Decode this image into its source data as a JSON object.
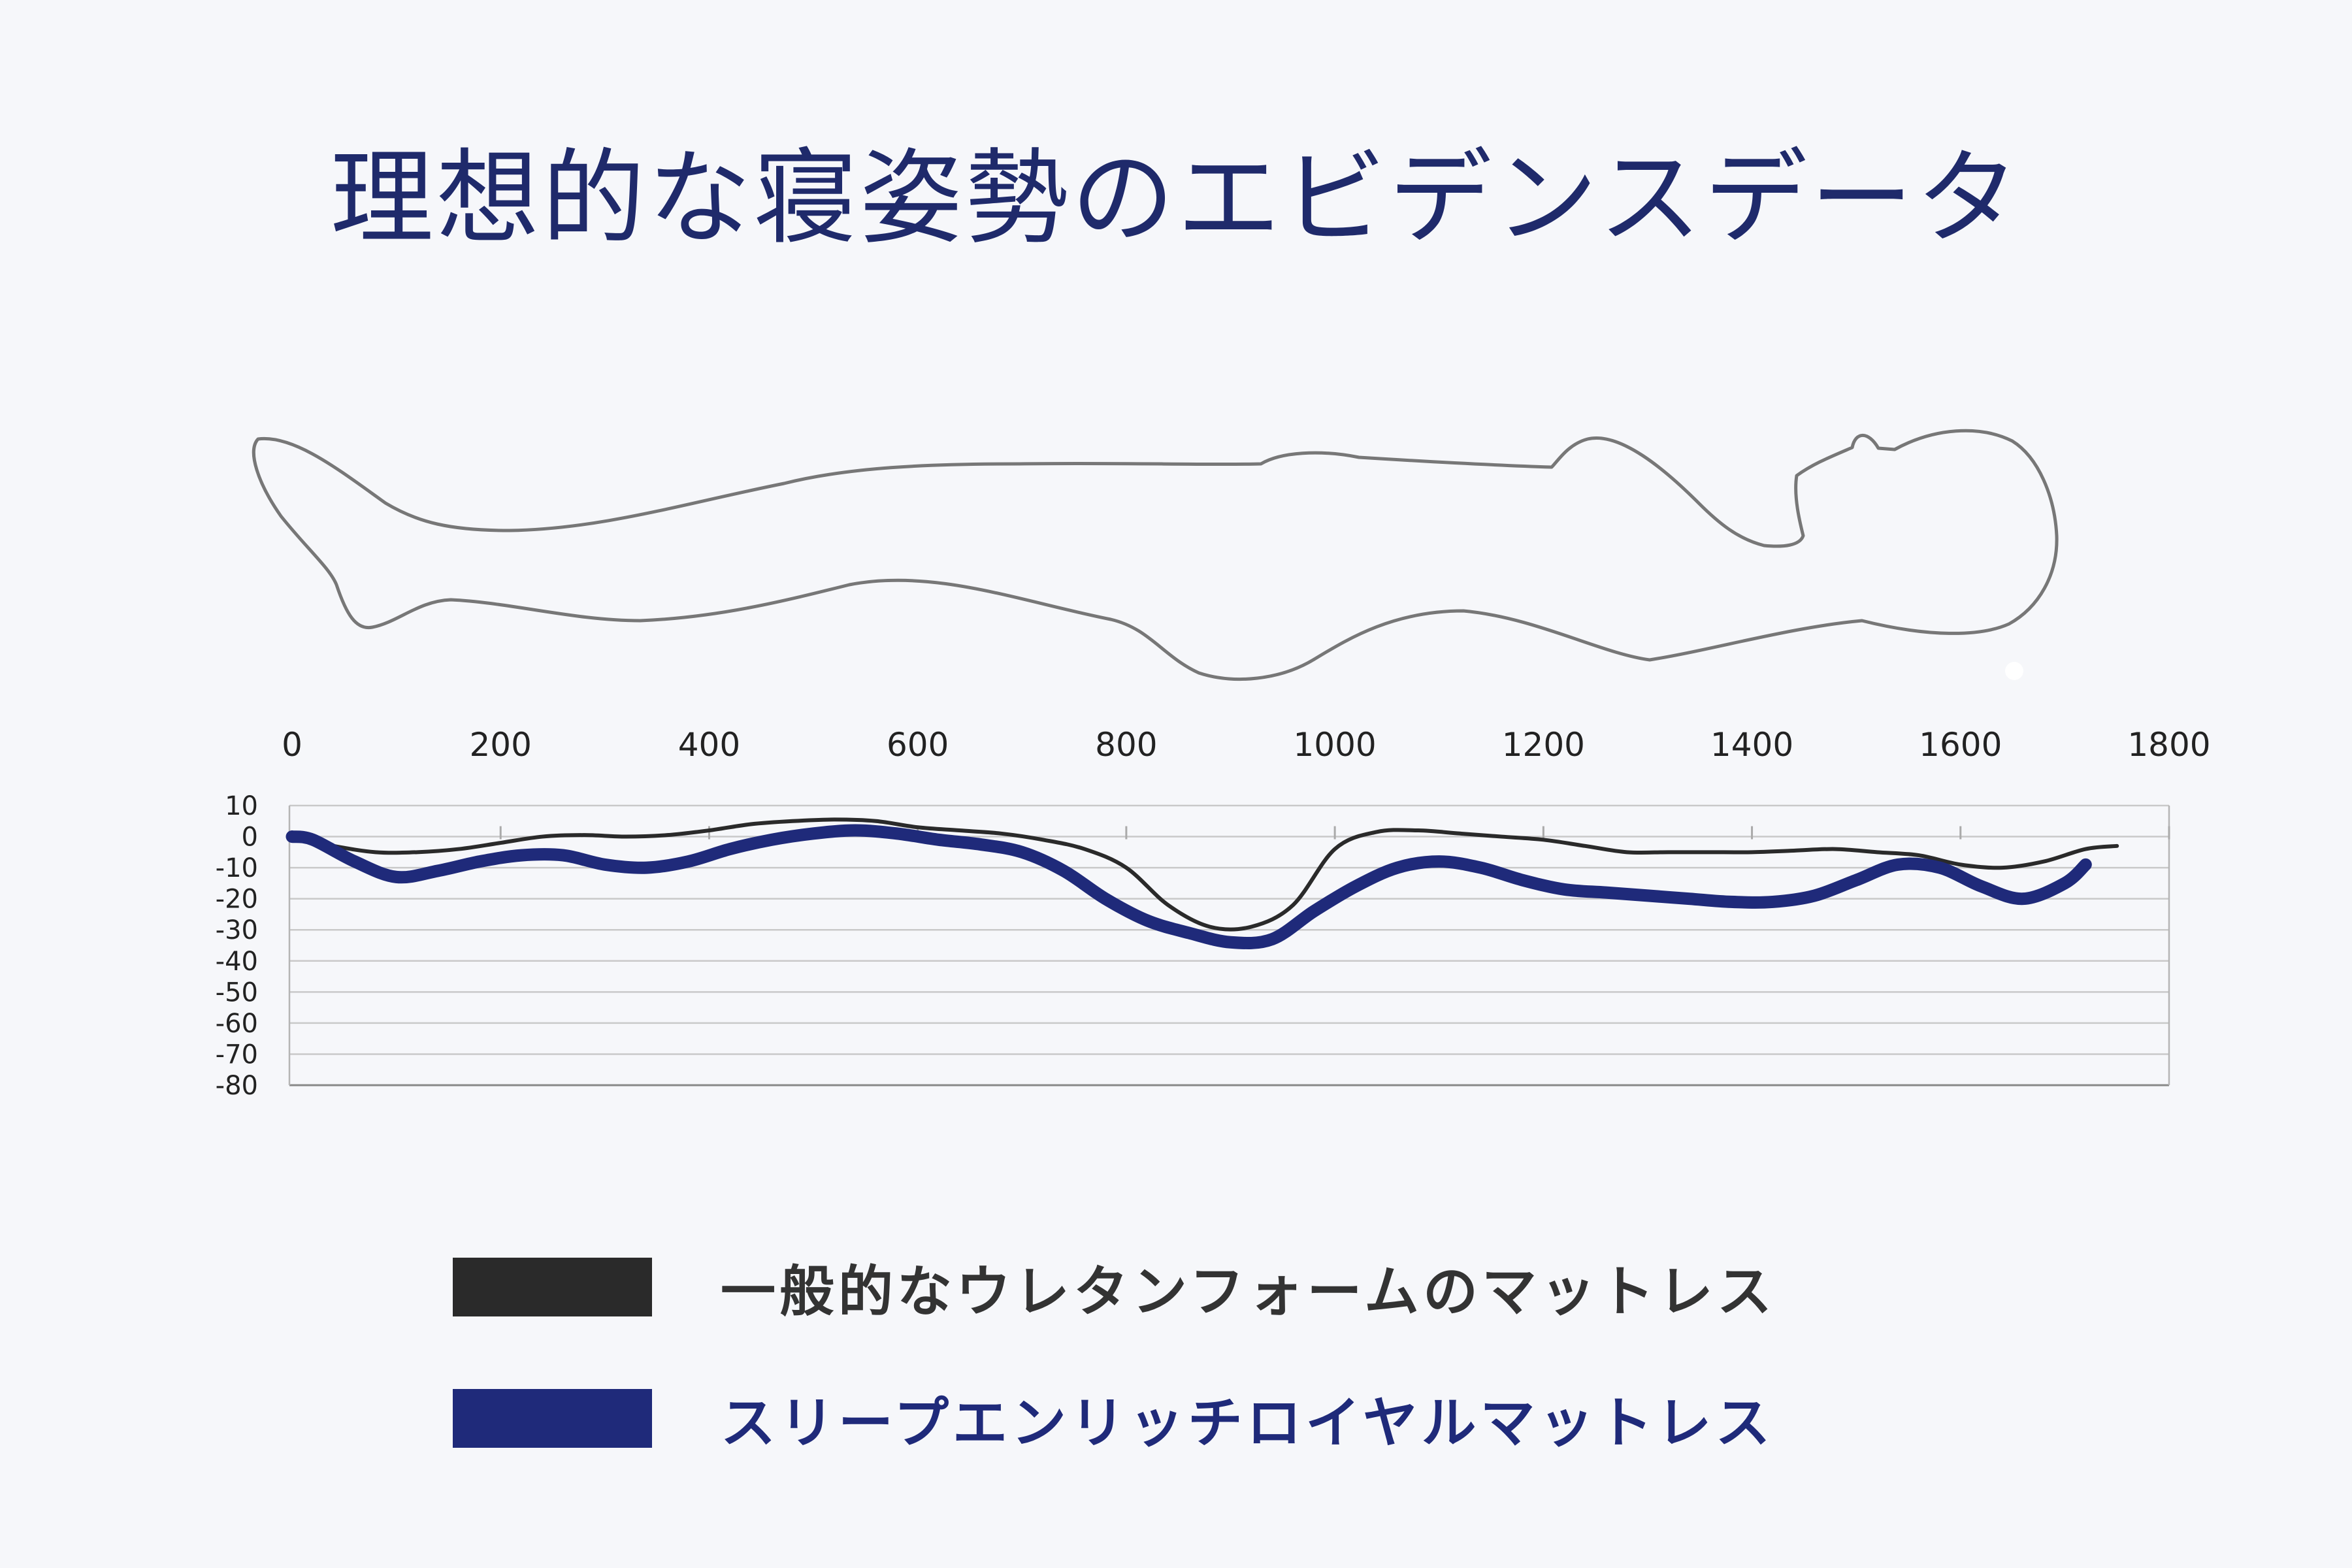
{
  "title": "理想的な寝姿勢のエビデンスデータ",
  "chart_data": {
    "type": "line",
    "x_ticks": [
      0,
      200,
      400,
      600,
      800,
      1000,
      1200,
      1400,
      1600,
      1800
    ],
    "y_ticks": [
      10,
      0,
      -10,
      -20,
      -30,
      -40,
      -50,
      -60,
      -70,
      -80
    ],
    "xlim": [
      0,
      1800
    ],
    "ylim": [
      -80,
      10
    ],
    "grid": "horizontal",
    "legend_position": "bottom",
    "series": [
      {
        "name": "一般的なウレタンフォームのマットレス",
        "color": "#2a2a2a",
        "x": [
          0,
          40,
          80,
          120,
          160,
          200,
          240,
          280,
          320,
          360,
          400,
          440,
          480,
          520,
          560,
          600,
          640,
          680,
          720,
          760,
          800,
          840,
          880,
          920,
          960,
          1000,
          1040,
          1080,
          1120,
          1160,
          1200,
          1240,
          1280,
          1320,
          1360,
          1400,
          1440,
          1480,
          1520,
          1560,
          1600,
          1640,
          1680,
          1720,
          1750
        ],
        "y": [
          0,
          -3,
          -5,
          -5,
          -4,
          -2,
          0,
          0.5,
          0,
          0.5,
          2,
          4,
          5,
          5.5,
          5,
          3,
          2,
          1,
          -1,
          -4,
          -10,
          -22,
          -29,
          -29,
          -22,
          -4,
          1.5,
          2,
          1,
          0,
          -1,
          -3,
          -5,
          -5,
          -5,
          -5,
          -4.5,
          -4,
          -5,
          -6,
          -9,
          -10,
          -8,
          -4,
          -3
        ]
      },
      {
        "name": "スリープエンリッチロイヤルマットレス",
        "color": "#1f2a7a",
        "x": [
          0,
          20,
          60,
          100,
          140,
          180,
          220,
          260,
          300,
          340,
          380,
          420,
          460,
          500,
          540,
          580,
          620,
          660,
          700,
          740,
          780,
          820,
          860,
          900,
          940,
          980,
          1020,
          1060,
          1100,
          1140,
          1180,
          1220,
          1260,
          1300,
          1340,
          1380,
          1420,
          1460,
          1500,
          1540,
          1580,
          1620,
          1660,
          1700,
          1720
        ],
        "y": [
          0,
          -1,
          -8,
          -13,
          -11,
          -8,
          -6,
          -6,
          -9,
          -10,
          -8,
          -4,
          -1,
          1,
          2,
          1,
          -1,
          -2.5,
          -5,
          -11,
          -20,
          -27,
          -31,
          -34,
          -33,
          -24,
          -16,
          -10,
          -8,
          -10,
          -14,
          -17,
          -18,
          -19,
          -20,
          -21,
          -21,
          -19,
          -14,
          -9,
          -10,
          -16,
          -20,
          -15,
          -9
        ]
      }
    ]
  },
  "legend": [
    {
      "label": "一般的なウレタンフォームのマットレス",
      "color": "#2a2a2a"
    },
    {
      "label": "スリープエンリッチロイヤルマットレス",
      "color": "#1f2a7a"
    }
  ]
}
